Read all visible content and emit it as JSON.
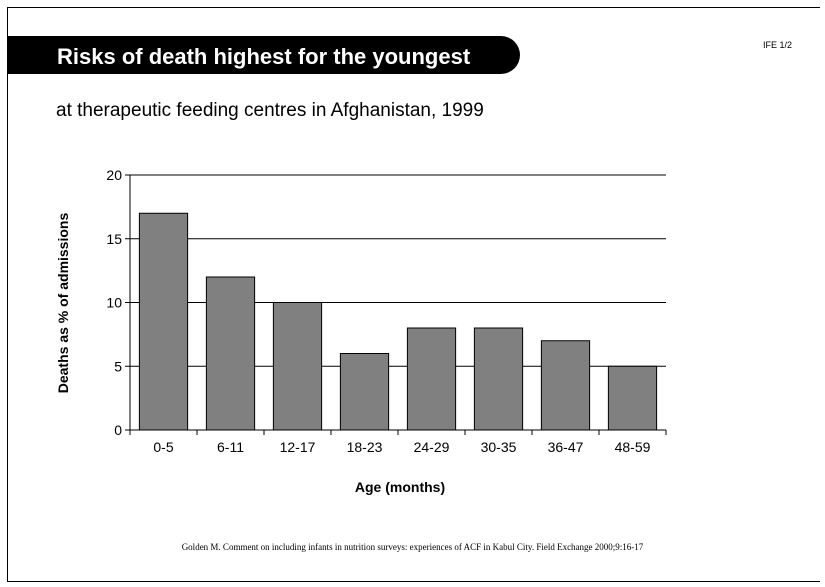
{
  "slide": {
    "title": "Risks of death highest for the youngest",
    "id_label": "IFE 1/2",
    "subtitle": "at therapeutic feeding centres in Afghanistan, 1999",
    "source": "Golden M. Comment on including infants in nutrition surveys: experiences of ACF in Kabul City. Field Exchange 2000;9:16-17"
  },
  "chart_data": {
    "type": "bar",
    "title": "",
    "categories": [
      "0-5",
      "6-11",
      "12-17",
      "18-23",
      "24-29",
      "30-35",
      "36-47",
      "48-59"
    ],
    "values": [
      17,
      12,
      10,
      6,
      8,
      8,
      7,
      5
    ],
    "xlabel": "Age (months)",
    "ylabel": "Deaths as % of admissions",
    "ylim": [
      0,
      20
    ],
    "yticks": [
      "0",
      "5",
      "10",
      "15",
      "20"
    ],
    "grid": true,
    "legend": "none",
    "bar_color": "#808080"
  }
}
